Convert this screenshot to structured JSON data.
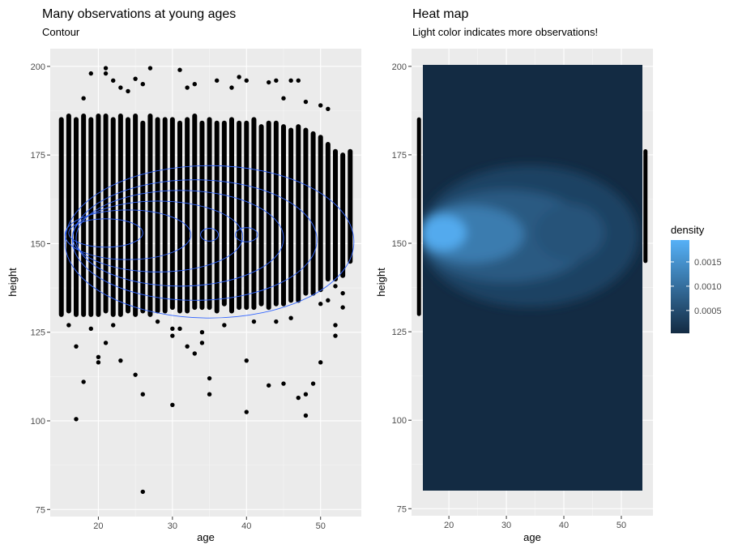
{
  "chart_data": [
    {
      "type": "scatter",
      "title": "Many observations at young ages",
      "subtitle": "Contour",
      "xlabel": "age",
      "ylabel": "height",
      "xlim": [
        13.5,
        55.5
      ],
      "ylim": [
        73,
        205
      ],
      "xticks": [
        20,
        30,
        40,
        50
      ],
      "yticks": [
        75,
        100,
        125,
        150,
        175,
        200
      ],
      "xtick_labels": [
        "20",
        "30",
        "40",
        "50"
      ],
      "ytick_labels": [
        "75",
        "100",
        "125",
        "150",
        "175",
        "200"
      ],
      "grid": true,
      "point_color": "#000000",
      "contour_color": "#3366ff",
      "ages": [
        15,
        16,
        17,
        18,
        19,
        20,
        21,
        22,
        23,
        24,
        25,
        26,
        27,
        28,
        29,
        30,
        31,
        32,
        33,
        34,
        35,
        36,
        37,
        38,
        39,
        40,
        41,
        42,
        43,
        44,
        45,
        46,
        47,
        48,
        49,
        50,
        51,
        52,
        53,
        54
      ],
      "column_low": [
        130,
        131,
        130,
        130,
        130,
        130,
        131,
        130,
        130,
        131,
        130,
        131,
        130,
        131,
        131,
        132,
        131,
        131,
        132,
        132,
        132,
        131,
        133,
        131,
        132,
        132,
        132,
        133,
        132,
        133,
        133,
        134,
        134,
        136,
        136,
        137,
        140,
        140,
        141,
        145
      ],
      "column_high": [
        185,
        186,
        185,
        186,
        185,
        186,
        186,
        185,
        186,
        185,
        186,
        184,
        186,
        185,
        185,
        185,
        184,
        185,
        186,
        184,
        185,
        184,
        184,
        185,
        184,
        184,
        185,
        183,
        184,
        184,
        183,
        182,
        183,
        182,
        181,
        180,
        178,
        176,
        175,
        176
      ],
      "outliers": [
        [
          17,
          100.5
        ],
        [
          18,
          111
        ],
        [
          17,
          121
        ],
        [
          20,
          116.5
        ],
        [
          20,
          118
        ],
        [
          21,
          122
        ],
        [
          23,
          117
        ],
        [
          25,
          113
        ],
        [
          26,
          107.5
        ],
        [
          26,
          80
        ],
        [
          30,
          104.5
        ],
        [
          30,
          126
        ],
        [
          30,
          124
        ],
        [
          32,
          121
        ],
        [
          33,
          119
        ],
        [
          34,
          122
        ],
        [
          34,
          125
        ],
        [
          35,
          107.5
        ],
        [
          35,
          112
        ],
        [
          40,
          102.5
        ],
        [
          40,
          117
        ],
        [
          43,
          110
        ],
        [
          45,
          110.5
        ],
        [
          47,
          106.5
        ],
        [
          48,
          107.5
        ],
        [
          49,
          110.5
        ],
        [
          48,
          101.5
        ],
        [
          50,
          116.5
        ],
        [
          52,
          124
        ],
        [
          52,
          127
        ],
        [
          53,
          132
        ],
        [
          53,
          136
        ],
        [
          18,
          191
        ],
        [
          19,
          198
        ],
        [
          21,
          199.5
        ],
        [
          21,
          198
        ],
        [
          22,
          196
        ],
        [
          23,
          194
        ],
        [
          24,
          193
        ],
        [
          25,
          196.5
        ],
        [
          26,
          195
        ],
        [
          27,
          199.5
        ],
        [
          31,
          199
        ],
        [
          32,
          194
        ],
        [
          33,
          195
        ],
        [
          36,
          196
        ],
        [
          38,
          194
        ],
        [
          39,
          197
        ],
        [
          40,
          196
        ],
        [
          43,
          195.5
        ],
        [
          44,
          196
        ],
        [
          46,
          196
        ],
        [
          47,
          196
        ],
        [
          45,
          191
        ],
        [
          48,
          190
        ],
        [
          50,
          189
        ],
        [
          51,
          188
        ],
        [
          16,
          127
        ],
        [
          19,
          126
        ],
        [
          22,
          127
        ],
        [
          28,
          128
        ],
        [
          31,
          126
        ],
        [
          37,
          127
        ],
        [
          41,
          128
        ],
        [
          44,
          128
        ],
        [
          46,
          129
        ],
        [
          50,
          133
        ],
        [
          51,
          134
        ],
        [
          52,
          138
        ]
      ],
      "contour_levels": [
        {
          "cx": 35,
          "cy": 150.5,
          "rx": 19.5,
          "ry": 21.5
        },
        {
          "cx": 33,
          "cy": 151,
          "rx": 16.5,
          "ry": 17
        },
        {
          "cx": 31,
          "cy": 151.5,
          "rx": 14,
          "ry": 13.5
        },
        {
          "cx": 28,
          "cy": 152,
          "rx": 11.5,
          "ry": 10
        },
        {
          "cx": 24,
          "cy": 152.5,
          "rx": 8.5,
          "ry": 7
        },
        {
          "cx": 21,
          "cy": 153,
          "rx": 5,
          "ry": 4
        },
        {
          "cx": 40,
          "cy": 152.5,
          "rx": 1.5,
          "ry": 2
        },
        {
          "cx": 35,
          "cy": 152.5,
          "rx": 1.2,
          "ry": 1.8
        }
      ]
    },
    {
      "type": "heatmap",
      "title": "Heat map",
      "subtitle": "Light color indicates more observations!",
      "xlabel": "age",
      "ylabel": "height",
      "xlim": [
        13.5,
        55.5
      ],
      "ylim": [
        73,
        205
      ],
      "tile_xrange": [
        14.8,
        54.2
      ],
      "tile_yrange": [
        79.5,
        200
      ],
      "xticks": [
        20,
        30,
        40,
        50
      ],
      "yticks": [
        75,
        100,
        125,
        150,
        175,
        200
      ],
      "xtick_labels": [
        "20",
        "30",
        "40",
        "50"
      ],
      "ytick_labels": [
        "75",
        "100",
        "125",
        "150",
        "175",
        "200"
      ],
      "grid": true,
      "low_color": "#132b43",
      "high_color": "#56b1f7",
      "legend": {
        "title": "density",
        "placement": "right",
        "min": 3e-05,
        "max": 0.00195,
        "breaks": [
          0.0005,
          0.001,
          0.0015
        ],
        "break_labels": [
          "0.0005",
          "0.0010",
          "0.0015"
        ]
      }
    }
  ]
}
